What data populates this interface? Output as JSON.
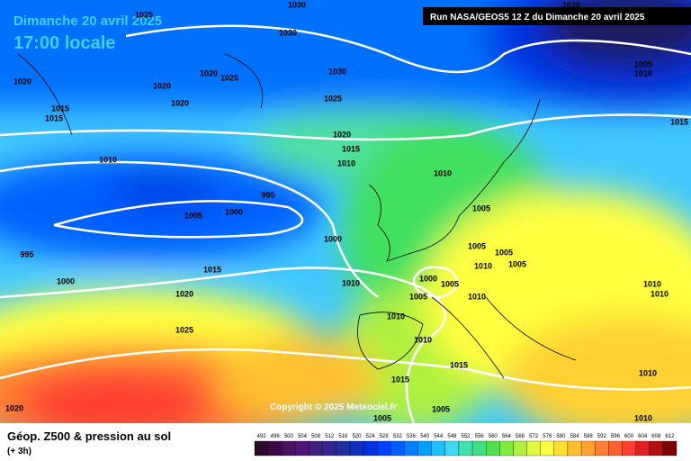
{
  "header": {
    "date": "Dimanche 20 avril 2025",
    "time": "17:00 locale",
    "run": "Run NASA/GEOS5 12 Z du Dimanche 20 avril 2025"
  },
  "copyright": "Copyright © 2025 Meteociel.fr",
  "isobar_labels": [
    "1030",
    "1025",
    "1030",
    "1020",
    "1020",
    "1020",
    "1025",
    "1015",
    "1015",
    "1020",
    "1030",
    "1025",
    "1020",
    "1015",
    "1010",
    "1010",
    "1010",
    "995",
    "1005",
    "1000",
    "1005",
    "1000",
    "1005",
    "1005",
    "1005",
    "1010",
    "995",
    "1015",
    "1000",
    "1010",
    "1000",
    "1005",
    "1005",
    "1010",
    "1020",
    "1010",
    "1025",
    "1010",
    "1015",
    "1015",
    "1020",
    "1005",
    "1005",
    "1010",
    "1010",
    "1010",
    "1010",
    "1015",
    "1005",
    "1010",
    "1020"
  ],
  "legend": {
    "title": "Géop. Z500 & pression au sol",
    "subtitle": "(+ 3h)",
    "levels": [
      492,
      496,
      500,
      504,
      508,
      512,
      516,
      520,
      524,
      528,
      532,
      536,
      540,
      544,
      548,
      552,
      556,
      560,
      564,
      568,
      572,
      576,
      580,
      584,
      588,
      592,
      596,
      600,
      604,
      608,
      612
    ],
    "colors": [
      "#2a0a2a",
      "#3c0a4a",
      "#4a1060",
      "#501478",
      "#402080",
      "#302890",
      "#2030a0",
      "#1030c0",
      "#0030e0",
      "#0040ff",
      "#0060ff",
      "#0080ff",
      "#00a0ff",
      "#20c0ff",
      "#40d8f0",
      "#40e0b0",
      "#40e080",
      "#50e050",
      "#80ec40",
      "#b0f040",
      "#e0f840",
      "#ffff40",
      "#ffe030",
      "#ffc030",
      "#ffa030",
      "#ff8030",
      "#ff6030",
      "#ff4030",
      "#e02020",
      "#b01010",
      "#800000"
    ]
  }
}
